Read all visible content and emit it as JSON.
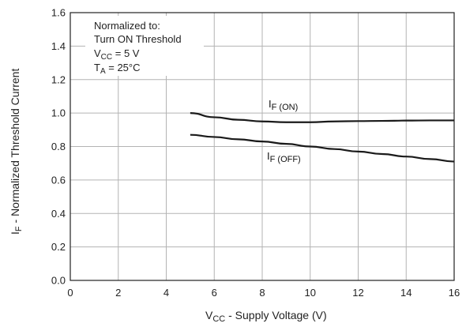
{
  "chart_data": {
    "type": "line",
    "xlabel": {
      "main": "V",
      "sub": "CC",
      "rest": " - Supply Voltage (V)"
    },
    "ylabel": {
      "main": "I",
      "sub": "F",
      "rest": " - Normalized Threshold Current"
    },
    "xlim": [
      0,
      16
    ],
    "ylim": [
      0,
      1.6
    ],
    "x_ticks": [
      "0",
      "2",
      "4",
      "6",
      "8",
      "10",
      "12",
      "14",
      "16"
    ],
    "y_ticks": [
      "0.0",
      "0.2",
      "0.4",
      "0.6",
      "0.8",
      "1.0",
      "1.2",
      "1.4",
      "1.6"
    ],
    "grid": true,
    "annotation": {
      "line1": "Normalized to:",
      "line2": "Turn ON Threshold",
      "line3": {
        "main": "V",
        "sub": "CC",
        "rest": " = 5 V"
      },
      "line4": {
        "main": "T",
        "sub": "A",
        "rest": " = 25°C"
      }
    },
    "series": [
      {
        "name": {
          "main": "I",
          "sub": "F (ON)"
        },
        "x": [
          5,
          6,
          7,
          8,
          9,
          10,
          11,
          12,
          13,
          14,
          15,
          16
        ],
        "y": [
          1.0,
          0.975,
          0.96,
          0.95,
          0.945,
          0.945,
          0.95,
          0.952,
          0.953,
          0.955,
          0.956,
          0.956
        ]
      },
      {
        "name": {
          "main": "I",
          "sub": "F (OFF)"
        },
        "x": [
          5,
          6,
          7,
          8,
          9,
          10,
          11,
          12,
          13,
          14,
          15,
          16
        ],
        "y": [
          0.87,
          0.857,
          0.843,
          0.83,
          0.816,
          0.8,
          0.785,
          0.77,
          0.755,
          0.74,
          0.725,
          0.71
        ]
      }
    ]
  }
}
